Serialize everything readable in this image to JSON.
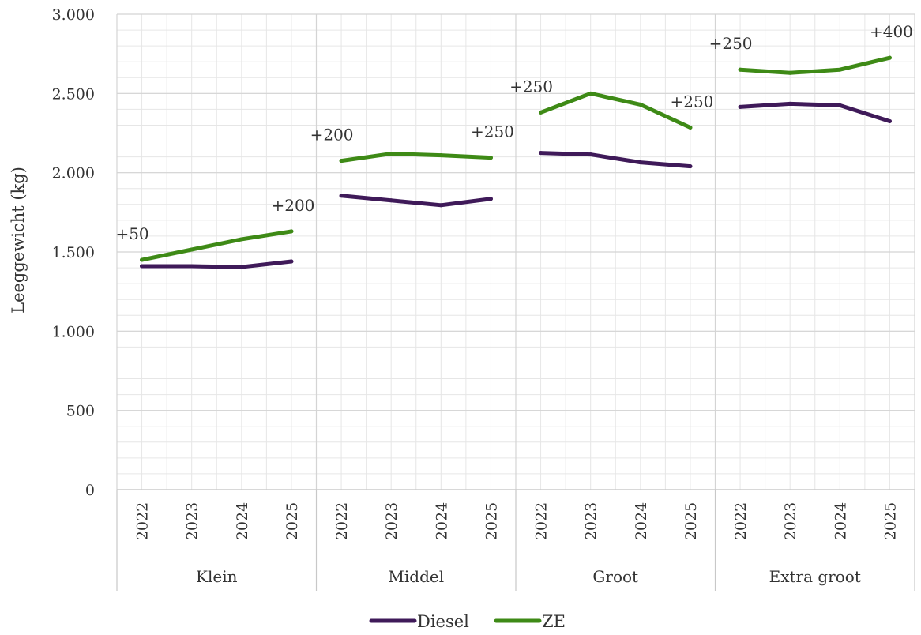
{
  "chart_data": {
    "type": "line",
    "ylabel": "Leeggewicht (kg)",
    "xlabel": "",
    "title": "",
    "ylim": [
      0,
      3000
    ],
    "yticks": [
      0,
      500,
      1000,
      1500,
      2000,
      2500,
      3000
    ],
    "ytick_labels": [
      "0",
      "500",
      "1.000",
      "1.500",
      "2.000",
      "2.500",
      "3.000"
    ],
    "groups": [
      "Klein",
      "Middel",
      "Groot",
      "Extra groot"
    ],
    "years": [
      "2022",
      "2023",
      "2024",
      "2025"
    ],
    "grid": true,
    "legend_position": "bottom",
    "series": [
      {
        "name": "Diesel",
        "color": "#3f1a59",
        "values": [
          [
            1410,
            1410,
            1405,
            1440
          ],
          [
            1855,
            1825,
            1795,
            1835
          ],
          [
            2125,
            2115,
            2065,
            2040
          ],
          [
            2415,
            2435,
            2425,
            2325
          ]
        ]
      },
      {
        "name": "ZE",
        "color": "#3e8a16",
        "values": [
          [
            1450,
            1515,
            1580,
            1630
          ],
          [
            2075,
            2120,
            2110,
            2095
          ],
          [
            2380,
            2500,
            2430,
            2285
          ],
          [
            2650,
            2630,
            2650,
            2725
          ]
        ]
      }
    ],
    "annotations": [
      [
        {
          "text": "+50",
          "year_index": 0
        },
        {
          "text": "+200",
          "year_index": 3
        }
      ],
      [
        {
          "text": "+200",
          "year_index": 0
        },
        {
          "text": "+250",
          "year_index": 3
        }
      ],
      [
        {
          "text": "+250",
          "year_index": 0
        },
        {
          "text": "+250",
          "year_index": 3
        }
      ],
      [
        {
          "text": "+250",
          "year_index": 0
        },
        {
          "text": "+400",
          "year_index": 3
        }
      ]
    ]
  }
}
